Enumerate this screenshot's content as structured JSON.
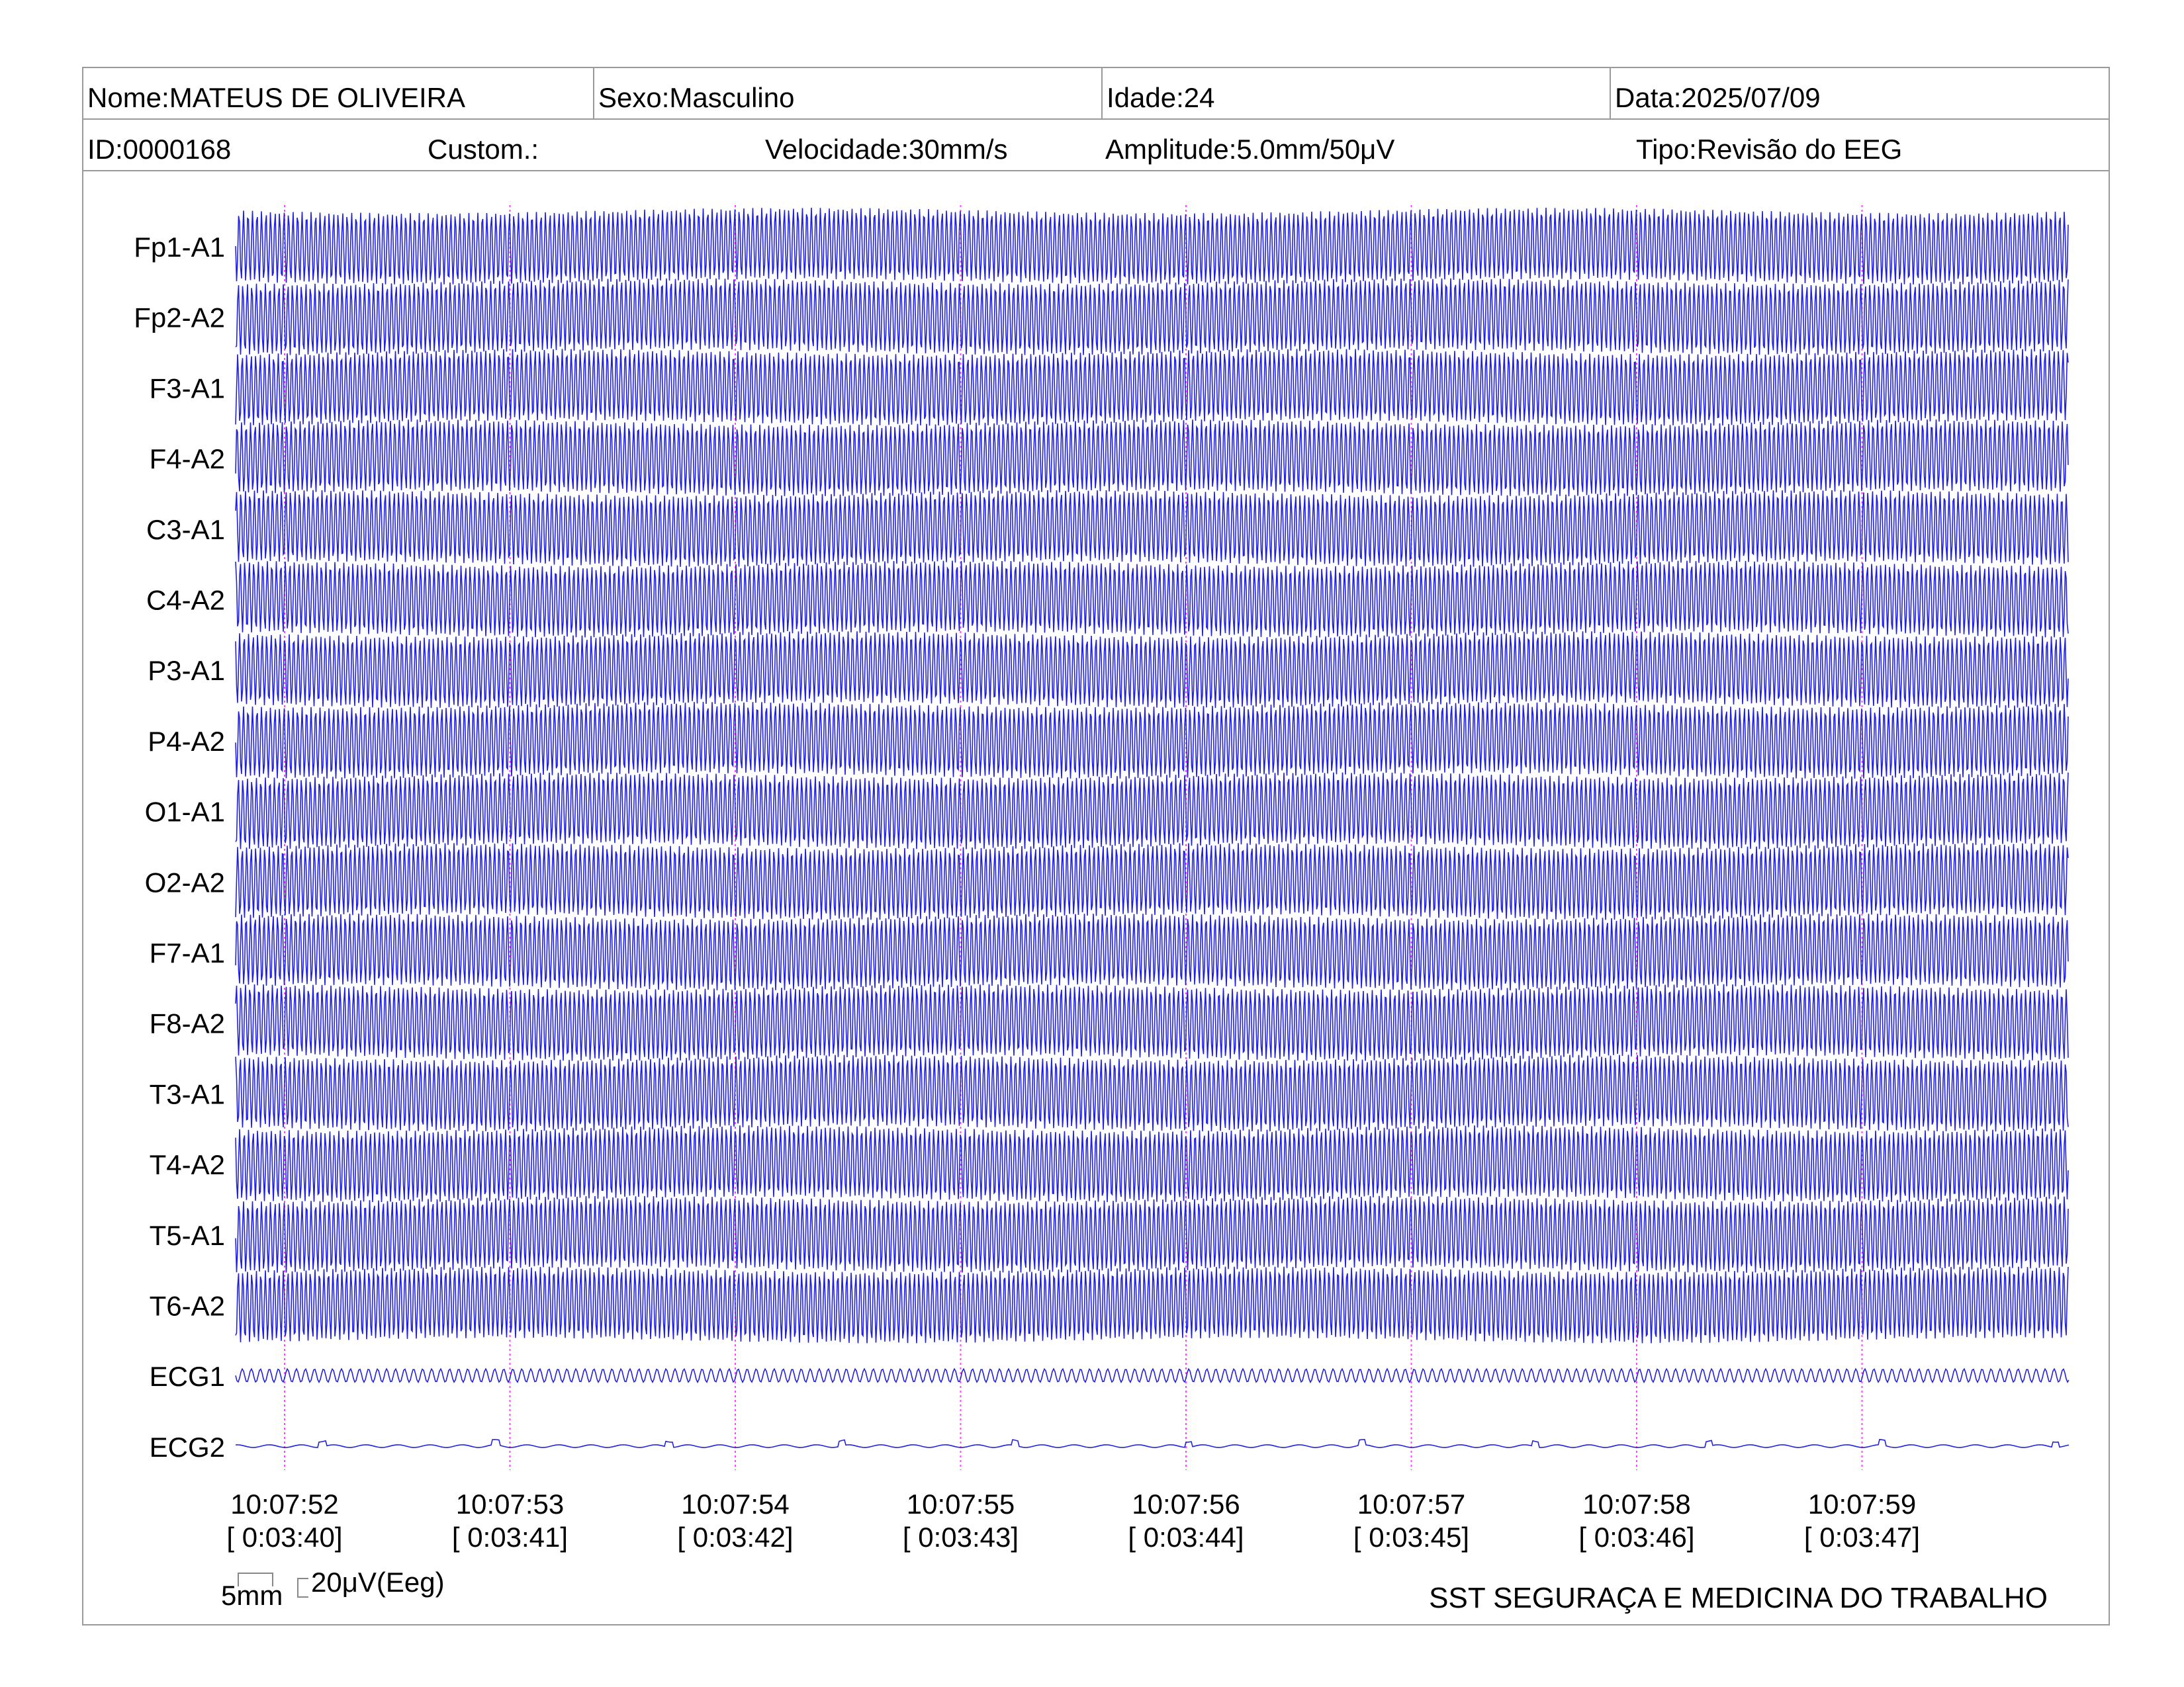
{
  "header": {
    "nome": "Nome:MATEUS DE OLIVEIRA",
    "sexo": "Sexo:Masculino",
    "idade": "Idade:24",
    "data": "Data:2025/07/09",
    "id": "ID:0000168",
    "custom": "Custom.:",
    "velocidade": "Velocidade:30mm/s",
    "amplitude": "Amplitude:5.0mm/50μV",
    "tipo": "Tipo:Revisão do EEG"
  },
  "scale": {
    "time_label": "5mm",
    "amplitude_label": "20μV(Eeg)"
  },
  "footer": {
    "organization": "SST SEGURAÇA E MEDICINA DO TRABALHO"
  },
  "colors": {
    "trace": "#2222dd",
    "time_marker": "#ff44ff",
    "border": "#9a9a9a"
  },
  "chart_data": {
    "type": "line",
    "channels": [
      "Fp1-A1",
      "Fp2-A2",
      "F3-A1",
      "F4-A2",
      "C3-A1",
      "C4-A2",
      "P3-A1",
      "P4-A2",
      "O1-A1",
      "O2-A2",
      "F7-A1",
      "F8-A2",
      "T3-A1",
      "T4-A2",
      "T5-A1",
      "T6-A2",
      "ECG1",
      "ECG2"
    ],
    "time_marks": [
      {
        "clock": "10:07:52",
        "elapsed": "[ 0:03:40]"
      },
      {
        "clock": "10:07:53",
        "elapsed": "[ 0:03:41]"
      },
      {
        "clock": "10:07:54",
        "elapsed": "[ 0:03:42]"
      },
      {
        "clock": "10:07:55",
        "elapsed": "[ 0:03:43]"
      },
      {
        "clock": "10:07:56",
        "elapsed": "[ 0:03:44]"
      },
      {
        "clock": "10:07:57",
        "elapsed": "[ 0:03:45]"
      },
      {
        "clock": "10:07:58",
        "elapsed": "[ 0:03:46]"
      },
      {
        "clock": "10:07:59",
        "elapsed": "[ 0:03:47]"
      }
    ],
    "eeg_frequency_hz": 50,
    "ecg1_frequency_hz": 25,
    "grid": false
  }
}
